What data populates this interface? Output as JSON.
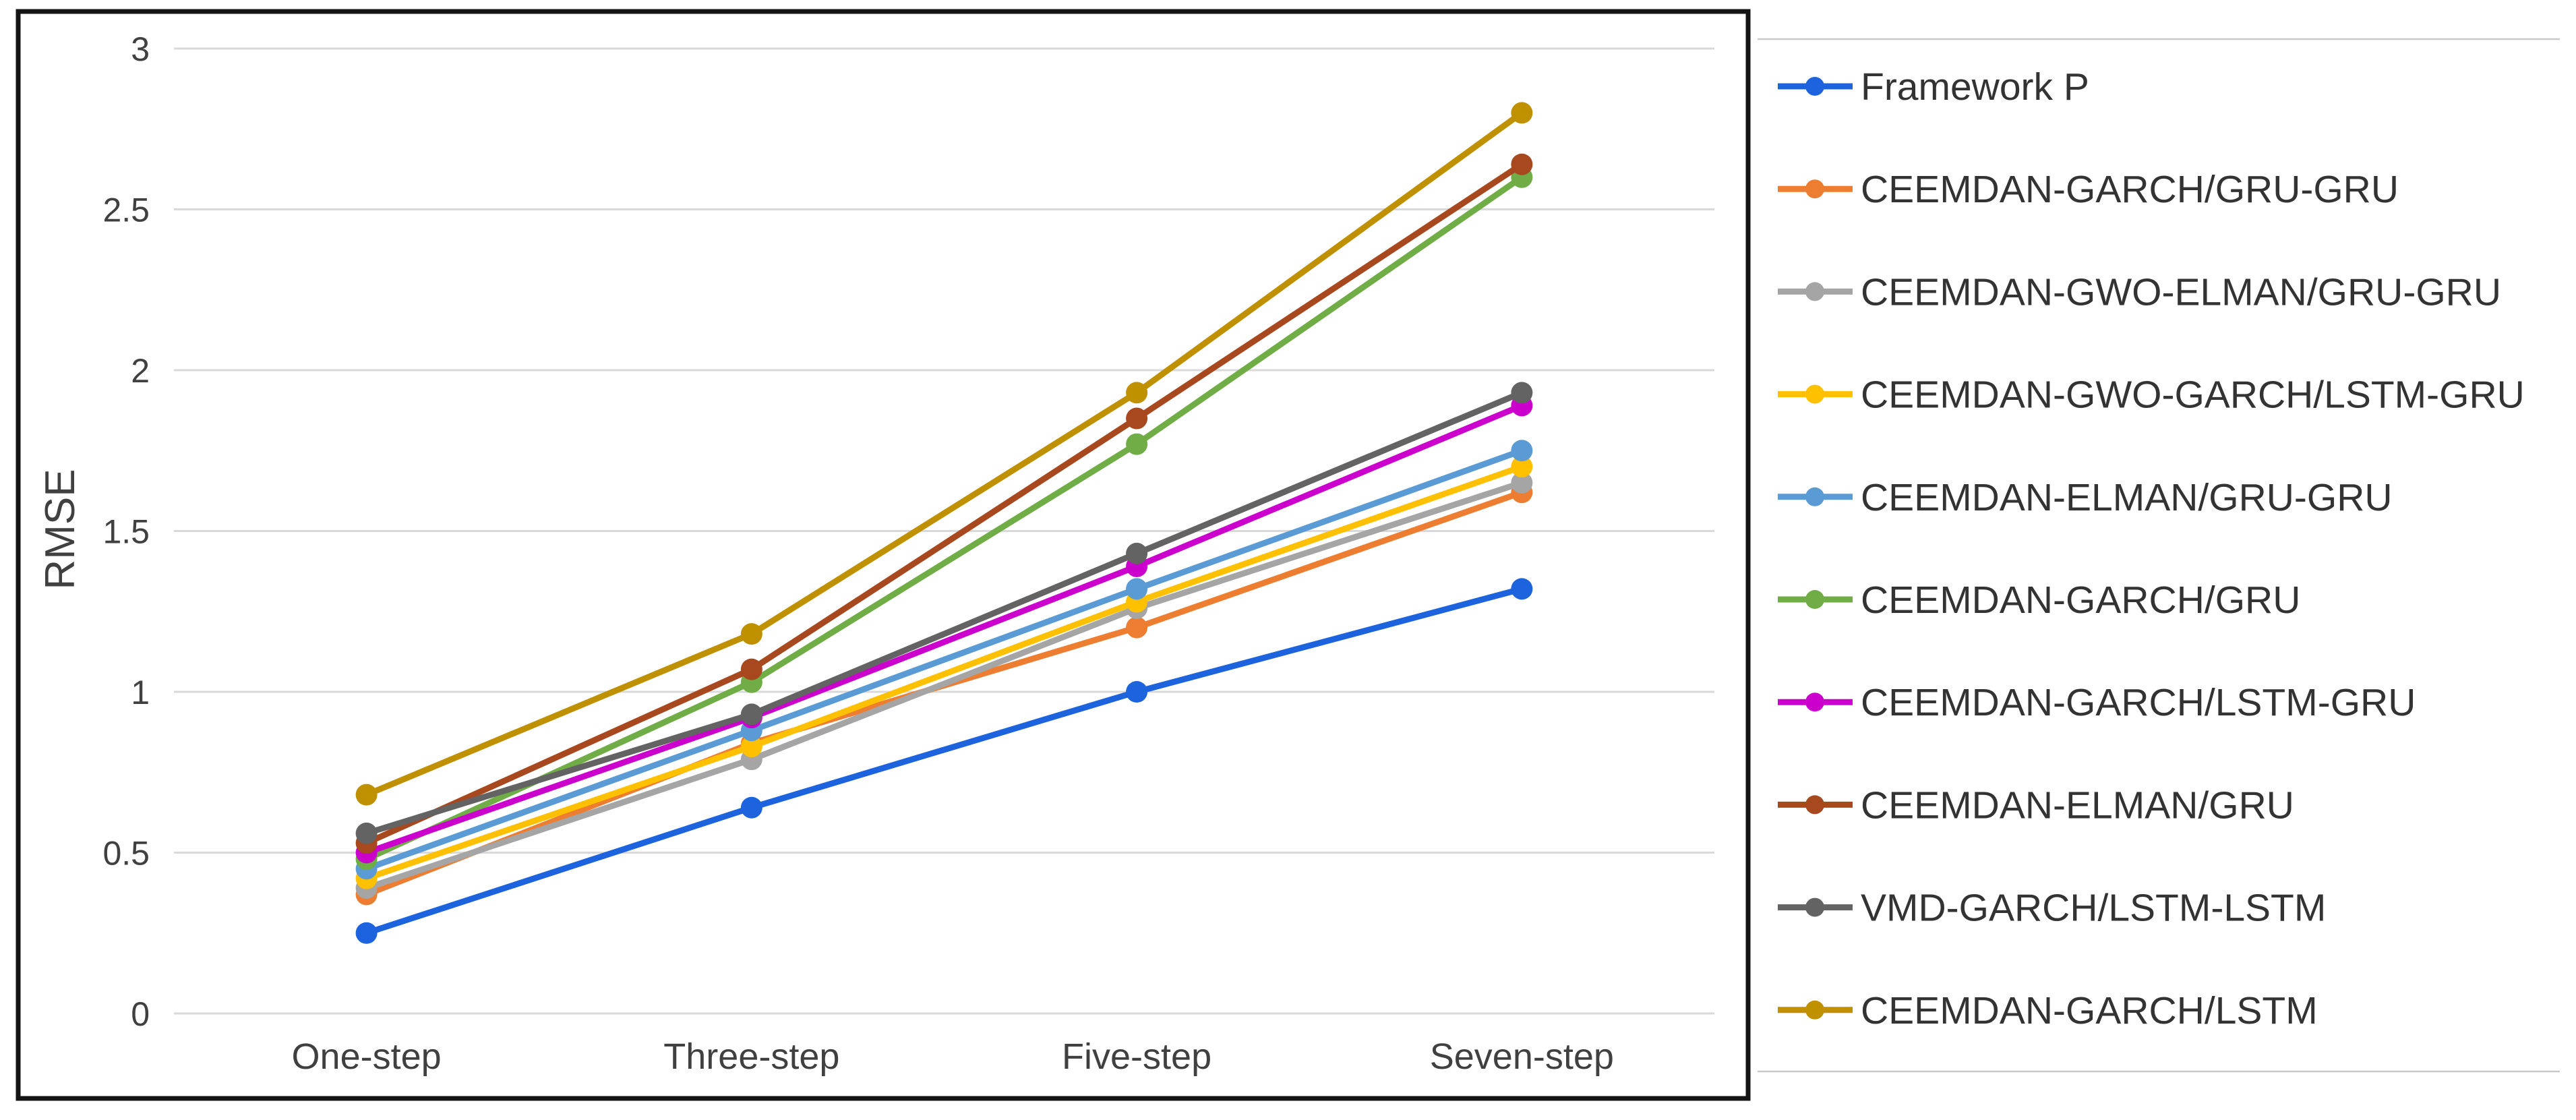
{
  "figure": {
    "kind": "line chart figure with external legend",
    "y_axis_title": "RMSE"
  },
  "colors": {
    "chart_border": "#141414",
    "gridline": "#D9D9D9",
    "axis_text": "#404040",
    "legend_text": "#333333",
    "legend_rule": "#C9C9C9",
    "background": "#FFFFFF"
  },
  "chart_data": {
    "type": "line",
    "title": "",
    "xlabel": "",
    "ylabel": "RMSE",
    "ylim": [
      0,
      3
    ],
    "yticks": [
      0,
      0.5,
      1,
      1.5,
      2,
      2.5,
      3
    ],
    "ytick_labels": [
      "0",
      "0.5",
      "1",
      "1.5",
      "2",
      "2.5",
      "3"
    ],
    "grid": "horizontal",
    "legend_position": "right-outside",
    "marker_style": "filled-circle",
    "categories": [
      "One-step",
      "Three-step",
      "Five-step",
      "Seven-step"
    ],
    "series": [
      {
        "name": "Framework P",
        "color": "#1C63DD",
        "values": [
          0.25,
          0.64,
          1.0,
          1.32
        ]
      },
      {
        "name": "CEEMDAN-GARCH/GRU-GRU",
        "color": "#ED7D31",
        "values": [
          0.37,
          0.84,
          1.2,
          1.62
        ]
      },
      {
        "name": "CEEMDAN-GWO-ELMAN/GRU-GRU",
        "color": "#A5A5A5",
        "values": [
          0.39,
          0.79,
          1.26,
          1.65
        ]
      },
      {
        "name": "CEEMDAN-GWO-GARCH/LSTM-GRU",
        "color": "#FFC000",
        "values": [
          0.42,
          0.83,
          1.28,
          1.7
        ]
      },
      {
        "name": "CEEMDAN-ELMAN/GRU-GRU",
        "color": "#5B9BD5",
        "values": [
          0.45,
          0.88,
          1.32,
          1.75
        ]
      },
      {
        "name": "CEEMDAN-GARCH/GRU",
        "color": "#70AD47",
        "values": [
          0.48,
          1.03,
          1.77,
          2.6
        ]
      },
      {
        "name": "CEEMDAN-GARCH/LSTM-GRU",
        "color": "#CC00CC",
        "values": [
          0.5,
          0.92,
          1.39,
          1.89
        ]
      },
      {
        "name": "CEEMDAN-ELMAN/GRU",
        "color": "#A8481F",
        "values": [
          0.53,
          1.07,
          1.85,
          2.64
        ]
      },
      {
        "name": "VMD-GARCH/LSTM-LSTM",
        "color": "#636363",
        "values": [
          0.56,
          0.93,
          1.43,
          1.93
        ]
      },
      {
        "name": "CEEMDAN-GARCH/LSTM",
        "color": "#BF9000",
        "values": [
          0.68,
          1.18,
          1.93,
          2.8
        ]
      }
    ]
  }
}
